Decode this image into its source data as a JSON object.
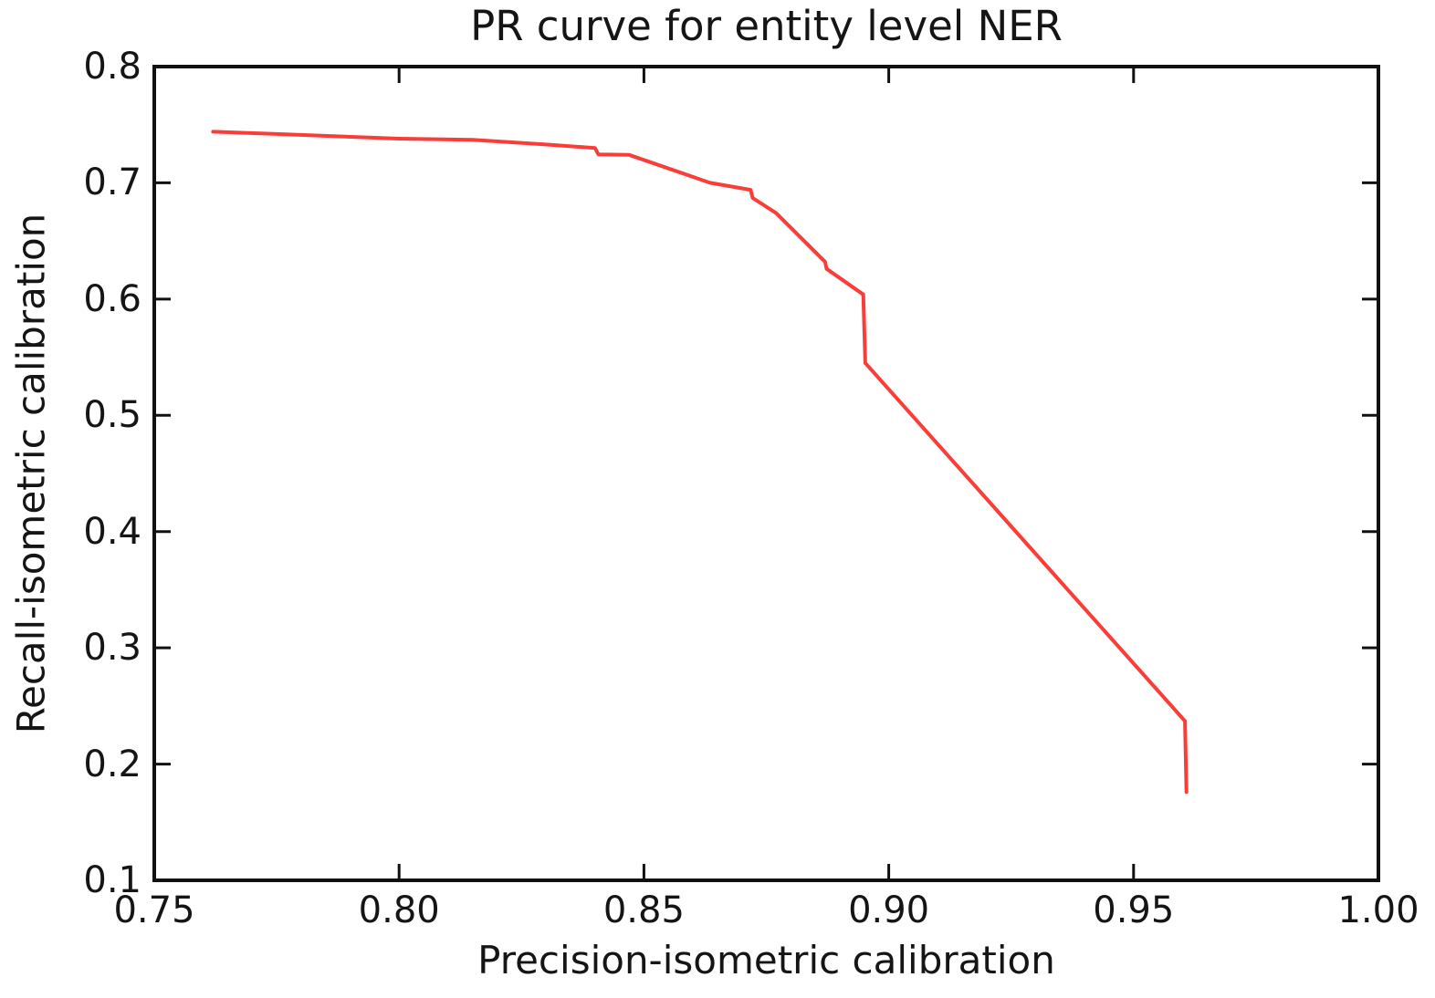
{
  "chart_data": {
    "type": "line",
    "title": "PR curve for entity level NER",
    "xlabel": "Precision-isometric calibration",
    "ylabel": "Recall-isometric calibration",
    "xlim": [
      0.75,
      1.0
    ],
    "ylim": [
      0.1,
      0.8
    ],
    "x_tick_labels": [
      "0.75",
      "0.80",
      "0.85",
      "0.90",
      "0.95",
      "1.00"
    ],
    "y_tick_labels": [
      "0.1",
      "0.2",
      "0.3",
      "0.4",
      "0.5",
      "0.6",
      "0.7",
      "0.8"
    ],
    "grid": false,
    "legend": null,
    "frame_color": "#111111",
    "line_color": "#f93d38",
    "series": [
      {
        "name": "PR curve",
        "points": [
          [
            0.762,
            0.744
          ],
          [
            0.775,
            0.742
          ],
          [
            0.8,
            0.738
          ],
          [
            0.815,
            0.737
          ],
          [
            0.83,
            0.733
          ],
          [
            0.84,
            0.73
          ],
          [
            0.8407,
            0.7245
          ],
          [
            0.847,
            0.724
          ],
          [
            0.8635,
            0.7
          ],
          [
            0.8718,
            0.694
          ],
          [
            0.8722,
            0.687
          ],
          [
            0.877,
            0.674
          ],
          [
            0.887,
            0.632
          ],
          [
            0.8873,
            0.626
          ],
          [
            0.8948,
            0.604
          ],
          [
            0.8952,
            0.545
          ],
          [
            0.9605,
            0.237
          ],
          [
            0.9608,
            0.176
          ]
        ]
      }
    ]
  }
}
